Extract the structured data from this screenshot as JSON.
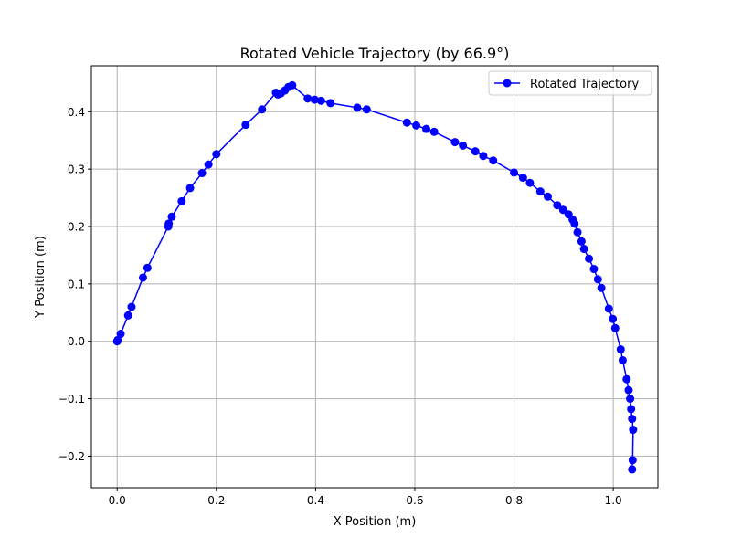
{
  "chart_data": {
    "type": "line",
    "title": "Rotated Vehicle Trajectory (by 66.9°)",
    "xlabel": "X Position (m)",
    "ylabel": "Y Position (m)",
    "xlim": [
      -0.052,
      1.09
    ],
    "ylim": [
      -0.255,
      0.48
    ],
    "xticks": [
      0.0,
      0.2,
      0.4,
      0.6,
      0.8,
      1.0
    ],
    "xtick_labels": [
      "0.0",
      "0.2",
      "0.4",
      "0.6",
      "0.8",
      "1.0"
    ],
    "yticks": [
      -0.2,
      -0.1,
      0.0,
      0.1,
      0.2,
      0.3,
      0.4
    ],
    "ytick_labels": [
      "−0.2",
      "−0.1",
      "0.0",
      "0.1",
      "0.2",
      "0.3",
      "0.4"
    ],
    "grid": true,
    "legend_position": "top-right",
    "series": [
      {
        "name": "Rotated Trajectory",
        "color": "#0000ff",
        "marker": "circle",
        "x": [
          0.0,
          0.001,
          0.007,
          0.022,
          0.029,
          0.052,
          0.061,
          0.103,
          0.104,
          0.11,
          0.13,
          0.147,
          0.171,
          0.184,
          0.2,
          0.259,
          0.292,
          0.32,
          0.324,
          0.33,
          0.338,
          0.345,
          0.353,
          0.384,
          0.398,
          0.411,
          0.43,
          0.484,
          0.503,
          0.584,
          0.603,
          0.623,
          0.639,
          0.681,
          0.697,
          0.722,
          0.738,
          0.758,
          0.8,
          0.818,
          0.832,
          0.853,
          0.868,
          0.887,
          0.899,
          0.91,
          0.918,
          0.922,
          0.928,
          0.936,
          0.941,
          0.951,
          0.961,
          0.969,
          0.976,
          0.991,
          0.999,
          1.004,
          1.015,
          1.019,
          1.027,
          1.031,
          1.034,
          1.036,
          1.038,
          1.04
        ],
        "y": [
          0.0,
          0.002,
          0.013,
          0.045,
          0.06,
          0.111,
          0.128,
          0.2,
          0.205,
          0.217,
          0.244,
          0.267,
          0.293,
          0.308,
          0.326,
          0.377,
          0.404,
          0.433,
          0.43,
          0.432,
          0.437,
          0.443,
          0.446,
          0.423,
          0.421,
          0.419,
          0.415,
          0.407,
          0.404,
          0.381,
          0.376,
          0.37,
          0.365,
          0.347,
          0.341,
          0.331,
          0.323,
          0.315,
          0.294,
          0.285,
          0.276,
          0.261,
          0.252,
          0.237,
          0.229,
          0.221,
          0.212,
          0.205,
          0.19,
          0.174,
          0.161,
          0.144,
          0.126,
          0.108,
          0.093,
          0.057,
          0.039,
          0.023,
          -0.014,
          -0.033,
          -0.066,
          -0.085,
          -0.1,
          -0.118,
          -0.135,
          -0.154
        ]
      }
    ],
    "tail_points": {
      "x": [
        1.039,
        1.038
      ],
      "y": [
        -0.207,
        -0.223
      ]
    }
  }
}
